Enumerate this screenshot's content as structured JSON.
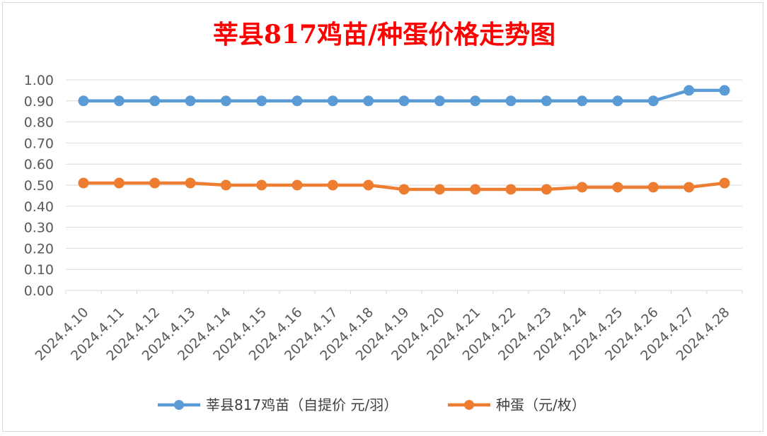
{
  "chart_data": {
    "type": "line",
    "title": "莘县817鸡苗/种蛋价格走势图",
    "title_color": "#ff0000",
    "xlabel": "",
    "ylabel": "",
    "ylim": [
      0,
      1.0
    ],
    "y_ticks": [
      "1.00",
      "0.90",
      "0.80",
      "0.70",
      "0.60",
      "0.50",
      "0.40",
      "0.30",
      "0.20",
      "0.10",
      "0.00"
    ],
    "grid": true,
    "legend_position": "bottom",
    "categories": [
      "2024.4.10",
      "2024.4.11",
      "2024.4.12",
      "2024.4.13",
      "2024.4.14",
      "2024.4.15",
      "2024.4.16",
      "2024.4.17",
      "2024.4.18",
      "2024.4.19",
      "2024.4.20",
      "2024.4.21",
      "2024.4.22",
      "2024.4.23",
      "2024.4.24",
      "2024.4.25",
      "2024.4.26",
      "2024.4.27",
      "2024.4.28"
    ],
    "series": [
      {
        "name": "莘县817鸡苗（自提价 元/羽）",
        "color": "#5b9bd5",
        "values": [
          0.9,
          0.9,
          0.9,
          0.9,
          0.9,
          0.9,
          0.9,
          0.9,
          0.9,
          0.9,
          0.9,
          0.9,
          0.9,
          0.9,
          0.9,
          0.9,
          0.9,
          0.95,
          0.95
        ]
      },
      {
        "name": "种蛋（元/枚）",
        "color": "#ed7d31",
        "values": [
          0.51,
          0.51,
          0.51,
          0.51,
          0.5,
          0.5,
          0.5,
          0.5,
          0.5,
          0.48,
          0.48,
          0.48,
          0.48,
          0.48,
          0.49,
          0.49,
          0.49,
          0.49,
          0.51
        ]
      }
    ]
  }
}
